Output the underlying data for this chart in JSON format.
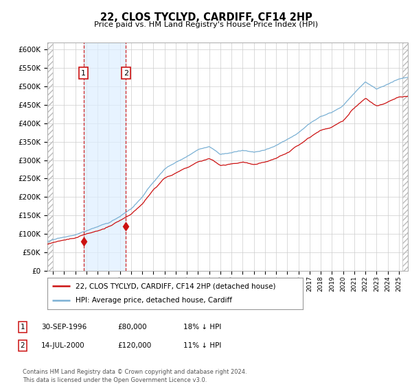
{
  "title": "22, CLOS TYCLYD, CARDIFF, CF14 2HP",
  "subtitle": "Price paid vs. HM Land Registry's House Price Index (HPI)",
  "ylim": [
    0,
    620000
  ],
  "yticks": [
    0,
    50000,
    100000,
    150000,
    200000,
    250000,
    300000,
    350000,
    400000,
    450000,
    500000,
    550000,
    600000
  ],
  "hpi_color": "#7ab0d4",
  "price_color": "#cc1111",
  "shade_color": "#ddeeff",
  "grid_color": "#cccccc",
  "bg_color": "#ffffff",
  "transactions": [
    {
      "date_num": 1996.75,
      "price": 80000,
      "label": "1"
    },
    {
      "date_num": 2000.54,
      "price": 120000,
      "label": "2"
    }
  ],
  "legend_entries": [
    {
      "label": "22, CLOS TYCLYD, CARDIFF, CF14 2HP (detached house)",
      "color": "#cc1111"
    },
    {
      "label": "HPI: Average price, detached house, Cardiff",
      "color": "#7ab0d4"
    }
  ],
  "table_rows": [
    {
      "num": "1",
      "date": "30-SEP-1996",
      "price": "£80,000",
      "note": "18% ↓ HPI"
    },
    {
      "num": "2",
      "date": "14-JUL-2000",
      "price": "£120,000",
      "note": "11% ↓ HPI"
    }
  ],
  "footnote": "Contains HM Land Registry data © Crown copyright and database right 2024.\nThis data is licensed under the Open Government Licence v3.0.",
  "xmin": 1993.5,
  "xmax": 2025.8,
  "hpi_waypoints_x": [
    1993.5,
    1994,
    1995,
    1996,
    1997,
    1998,
    1999,
    2000,
    2001,
    2002,
    2003,
    2004,
    2005,
    2006,
    2007,
    2008,
    2009,
    2010,
    2011,
    2012,
    2013,
    2014,
    2015,
    2016,
    2017,
    2018,
    2019,
    2020,
    2021,
    2022,
    2023,
    2024,
    2025,
    2025.8
  ],
  "hpi_waypoints_y": [
    80000,
    83000,
    90000,
    97000,
    107000,
    118000,
    130000,
    145000,
    165000,
    195000,
    235000,
    270000,
    288000,
    305000,
    322000,
    330000,
    310000,
    315000,
    320000,
    315000,
    320000,
    332000,
    348000,
    368000,
    392000,
    415000,
    428000,
    445000,
    480000,
    510000,
    490000,
    505000,
    520000,
    525000
  ],
  "price_waypoints_x": [
    1993.5,
    1994,
    1995,
    1996,
    1997,
    1998,
    1999,
    2000,
    2001,
    2002,
    2003,
    2004,
    2005,
    2006,
    2007,
    2008,
    2009,
    2010,
    2011,
    2012,
    2013,
    2014,
    2015,
    2016,
    2017,
    2018,
    2019,
    2020,
    2021,
    2022,
    2023,
    2024,
    2025,
    2025.8
  ],
  "price_waypoints_y": [
    72000,
    75000,
    81000,
    87000,
    97000,
    107000,
    118000,
    132000,
    150000,
    178000,
    215000,
    248000,
    263000,
    278000,
    293000,
    300000,
    282000,
    286000,
    290000,
    285000,
    290000,
    300000,
    315000,
    333000,
    355000,
    376000,
    387000,
    402000,
    436000,
    462000,
    444000,
    457000,
    470000,
    473000
  ]
}
